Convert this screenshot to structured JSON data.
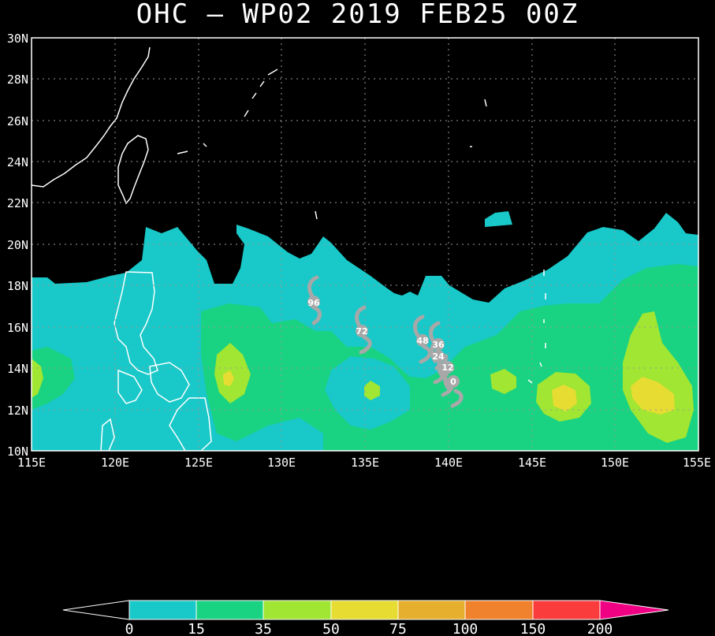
{
  "title": "OHC – WP02 2019 FEB25 00Z",
  "lat_labels": [
    "30N",
    "28N",
    "26N",
    "24N",
    "22N",
    "20N",
    "18N",
    "16N",
    "14N",
    "12N",
    "10N"
  ],
  "lon_labels": [
    "115E",
    "120E",
    "125E",
    "130E",
    "135E",
    "140E",
    "145E",
    "150E",
    "155E"
  ],
  "track_labels": [
    "96",
    "72",
    "48",
    "36",
    "24",
    "12",
    "0"
  ],
  "colorbar": {
    "labels": [
      "0",
      "15",
      "35",
      "50",
      "75",
      "100",
      "150",
      "200"
    ],
    "colors": [
      "#19c8c8",
      "#19d282",
      "#a0e632",
      "#e6dc32",
      "#e6af2d",
      "#f0822d",
      "#fa3c3c",
      "#f00082"
    ]
  }
}
